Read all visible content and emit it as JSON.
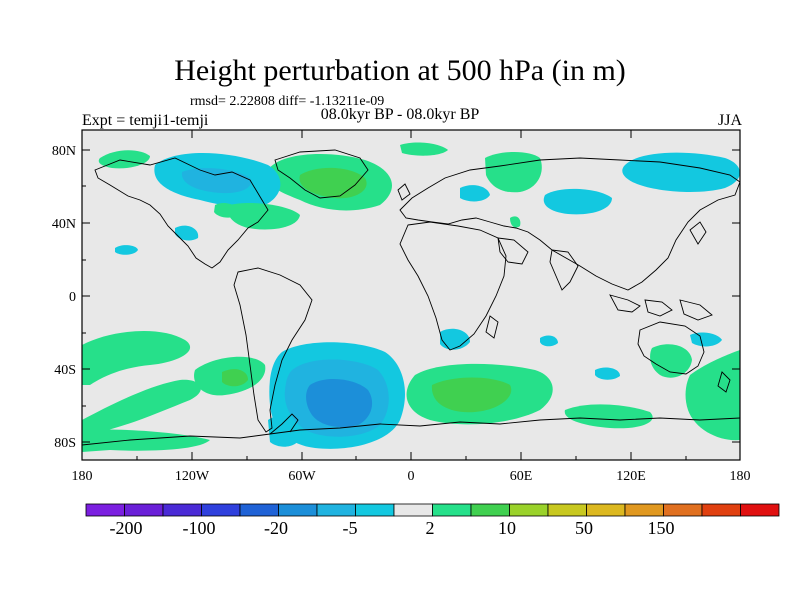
{
  "header": {
    "title": "Height perturbation at 500 hPa (in m)",
    "stats": "rmsd= 2.22808 diff= -1.13211e-09",
    "expt": "Expt = temji1-temji",
    "period": "08.0kyr BP - 08.0kyr BP",
    "season": "JJA"
  },
  "axes": {
    "y_ticks": [
      "80N",
      "40N",
      "0",
      "40S",
      "80S"
    ],
    "x_ticks": [
      "180",
      "120W",
      "60W",
      "0",
      "60E",
      "120E",
      "180"
    ]
  },
  "colorbar": {
    "labels": [
      "-200",
      "-100",
      "-20",
      "-5",
      "2",
      "10",
      "50",
      "150"
    ],
    "colors": [
      "#7b1fe0",
      "#6a1fd8",
      "#4a2ad6",
      "#2f40dd",
      "#1f62d6",
      "#1c8fd9",
      "#20b3e0",
      "#13c8e0",
      "#e8e8e8",
      "#26e08a",
      "#40d050",
      "#9ad22a",
      "#c8c820",
      "#dcb820",
      "#e09820",
      "#e07020",
      "#e04010",
      "#e01010"
    ]
  },
  "map": {
    "background": "#e8e8e8",
    "palette": {
      "light_blue": "#13c8e0",
      "mid_blue": "#20b3e0",
      "deep_blue": "#1c8fd9",
      "light_green": "#26e08a",
      "green": "#40d050"
    }
  }
}
